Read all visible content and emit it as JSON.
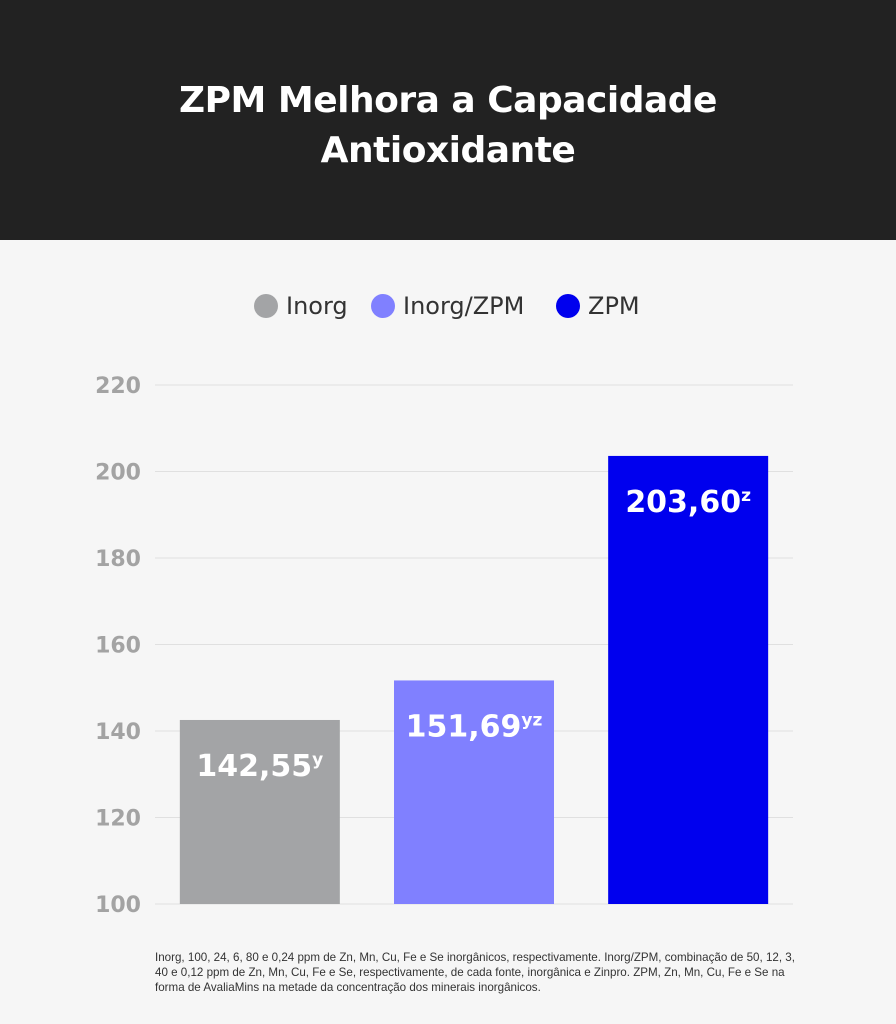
{
  "title_lines": [
    "ZPM Melhora a Capacidade",
    "Antioxidante"
  ],
  "colors": {
    "header_bg": "#222222",
    "background": "#f6f6f6",
    "grid": "#e0e0e0",
    "tick_text": "#a3a3a3"
  },
  "legend": [
    {
      "label": "Inorg",
      "color": "#a3a4a6"
    },
    {
      "label": "Inorg/ZPM",
      "color": "#8080ff"
    },
    {
      "label": "ZPM",
      "color": "#0000ee"
    }
  ],
  "chart_data": {
    "type": "bar",
    "categories": [
      "Inorg",
      "Inorg/ZPM",
      "ZPM"
    ],
    "values": [
      142.55,
      151.69,
      203.6
    ],
    "value_labels": [
      "142,55",
      "151,69",
      "203,60"
    ],
    "superscripts": [
      "y",
      "yz",
      "z"
    ],
    "colors": [
      "#a3a4a6",
      "#8080ff",
      "#0000ee"
    ],
    "ylim": [
      100,
      220
    ],
    "yticks": [
      100,
      120,
      140,
      160,
      180,
      200,
      220
    ],
    "grid": true,
    "legend_position": "top-center"
  },
  "footnote": "Inorg, 100, 24, 6, 80 e 0,24 ppm de Zn, Mn, Cu, Fe e Se inorgânicos, respectivamente. Inorg/ZPM, combinação de 50, 12, 3, 40 e 0,12 ppm de Zn, Mn, Cu, Fe e Se, respectivamente, de cada fonte, inorgânica e Zinpro. ZPM, Zn, Mn, Cu, Fe e Se na forma de AvaliaMins na metade da concentração dos minerais inorgânicos."
}
